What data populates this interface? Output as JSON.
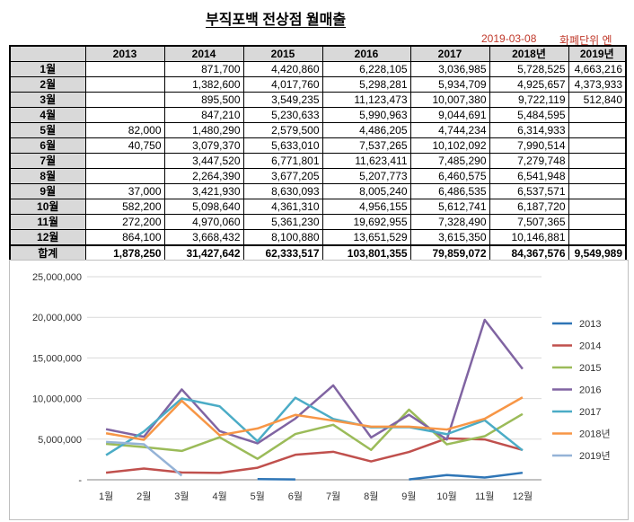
{
  "sheet": {
    "title": "부직포백 전상점 월매출",
    "date": "2019-03-08",
    "unit_note": "화폐단위 엔",
    "headers": [
      "",
      "2013",
      "2014",
      "2015",
      "2016",
      "2017",
      "2018년",
      "2019년"
    ],
    "rows": [
      {
        "label": "1월",
        "cells": [
          "",
          "871,700",
          "4,420,860",
          "6,228,105",
          "3,036,985",
          "5,728,525",
          "4,663,216"
        ]
      },
      {
        "label": "2월",
        "cells": [
          "",
          "1,382,600",
          "4,017,760",
          "5,298,281",
          "5,934,709",
          "4,925,657",
          "4,373,933"
        ]
      },
      {
        "label": "3월",
        "cells": [
          "",
          "895,500",
          "3,549,235",
          "11,123,473",
          "10,007,380",
          "9,722,119",
          "512,840"
        ]
      },
      {
        "label": "4월",
        "cells": [
          "",
          "847,210",
          "5,230,633",
          "5,990,963",
          "9,044,691",
          "5,484,595",
          ""
        ]
      },
      {
        "label": "5월",
        "cells": [
          "82,000",
          "1,480,290",
          "2,579,500",
          "4,486,205",
          "4,744,234",
          "6,314,933",
          ""
        ]
      },
      {
        "label": "6월",
        "cells": [
          "40,750",
          "3,079,370",
          "5,633,010",
          "7,537,265",
          "10,102,092",
          "7,990,514",
          ""
        ]
      },
      {
        "label": "7월",
        "cells": [
          "",
          "3,447,520",
          "6,771,801",
          "11,623,411",
          "7,485,290",
          "7,279,748",
          ""
        ]
      },
      {
        "label": "8월",
        "cells": [
          "",
          "2,264,390",
          "3,677,205",
          "5,207,773",
          "6,460,575",
          "6,541,948",
          ""
        ]
      },
      {
        "label": "9월",
        "cells": [
          "37,000",
          "3,421,930",
          "8,630,093",
          "8,005,240",
          "6,486,535",
          "6,537,571",
          ""
        ]
      },
      {
        "label": "10월",
        "cells": [
          "582,200",
          "5,098,640",
          "4,361,310",
          "4,956,155",
          "5,612,741",
          "6,187,720",
          ""
        ]
      },
      {
        "label": "11월",
        "cells": [
          "272,200",
          "4,970,060",
          "5,361,230",
          "19,692,955",
          "7,328,490",
          "7,507,365",
          ""
        ]
      },
      {
        "label": "12월",
        "cells": [
          "864,100",
          "3,668,432",
          "8,100,880",
          "13,651,529",
          "3,615,350",
          "10,146,881",
          ""
        ]
      }
    ],
    "total": {
      "label": "합계",
      "cells": [
        "1,878,250",
        "31,427,642",
        "62,333,517",
        "103,801,355",
        "79,859,072",
        "84,367,576",
        "9,549,989"
      ]
    }
  },
  "chart_data": {
    "type": "line",
    "title": "",
    "xlabel": "",
    "ylabel": "",
    "categories": [
      "1월",
      "2월",
      "3월",
      "4월",
      "5월",
      "6월",
      "7월",
      "8월",
      "9월",
      "10월",
      "11월",
      "12월"
    ],
    "ylim": [
      0,
      25000000
    ],
    "yticks": [
      "-",
      "5,000,000",
      "10,000,000",
      "15,000,000",
      "20,000,000",
      "25,000,000"
    ],
    "legend_position": "right",
    "series": [
      {
        "name": "2013",
        "color": "#2e75b6",
        "values": [
          null,
          null,
          null,
          null,
          82000,
          40750,
          null,
          null,
          37000,
          582200,
          272200,
          864100
        ]
      },
      {
        "name": "2014",
        "color": "#c0504d",
        "values": [
          871700,
          1382600,
          895500,
          847210,
          1480290,
          3079370,
          3447520,
          2264390,
          3421930,
          5098640,
          4970060,
          3668432
        ]
      },
      {
        "name": "2015",
        "color": "#9bbb59",
        "values": [
          4420860,
          4017760,
          3549235,
          5230633,
          2579500,
          5633010,
          6771801,
          3677205,
          8630093,
          4361310,
          5361230,
          8100880
        ]
      },
      {
        "name": "2016",
        "color": "#8064a2",
        "values": [
          6228105,
          5298281,
          11123473,
          5990963,
          4486205,
          7537265,
          11623411,
          5207773,
          8005240,
          4956155,
          19692955,
          13651529
        ]
      },
      {
        "name": "2017",
        "color": "#4bacc6",
        "values": [
          3036985,
          5934709,
          10007380,
          9044691,
          4744234,
          10102092,
          7485290,
          6460575,
          6486535,
          5612741,
          7328490,
          3615350
        ]
      },
      {
        "name": "2018년",
        "color": "#f79646",
        "values": [
          5728525,
          4925657,
          9722119,
          5484595,
          6314933,
          7990514,
          7279748,
          6541948,
          6537571,
          6187720,
          7507365,
          10146881
        ]
      },
      {
        "name": "2019년",
        "color": "#95b3d7",
        "values": [
          4663216,
          4373933,
          512840,
          null,
          null,
          null,
          null,
          null,
          null,
          null,
          null,
          null
        ]
      }
    ]
  }
}
